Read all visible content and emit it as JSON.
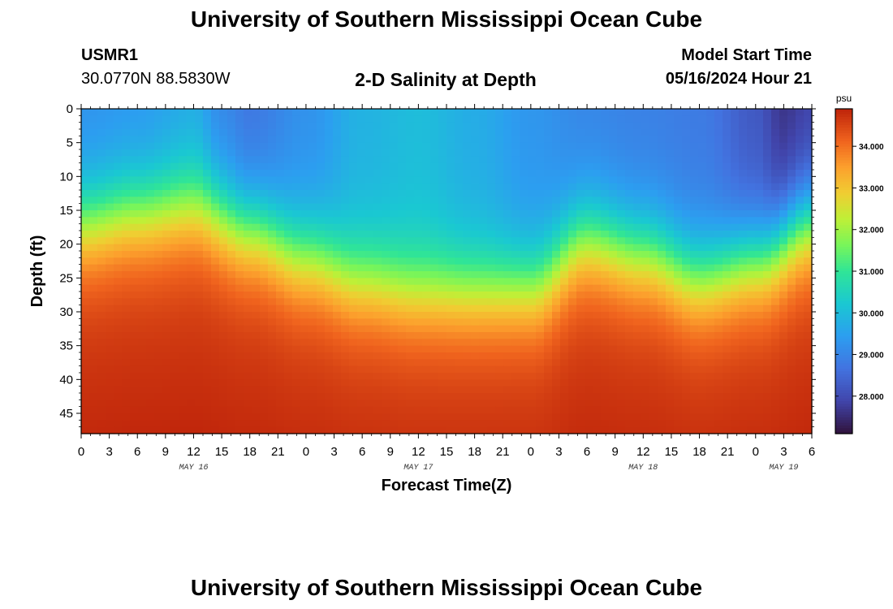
{
  "header": {
    "title": "University of Southern Mississippi Ocean Cube",
    "footer_title": "University of Southern Mississippi Ocean Cube",
    "station_id": "USMR1",
    "station_coords": "30.0770N  88.5830W",
    "plot_title": "2-D Salinity at Depth",
    "model_start_label": "Model Start Time",
    "model_start_value": "05/16/2024 Hour 21"
  },
  "chart_data": {
    "type": "heatmap",
    "title": "2-D Salinity at Depth",
    "xlabel": "Forecast Time(Z)",
    "ylabel": "Depth (ft)",
    "units": "psu",
    "x_range_hours": [
      0,
      78
    ],
    "ylim": [
      0,
      48
    ],
    "y_ticks": [
      0,
      5,
      10,
      15,
      20,
      25,
      30,
      35,
      40,
      45
    ],
    "x_tick_labels": [
      "0",
      "3",
      "6",
      "9",
      "12",
      "15",
      "18",
      "21",
      "0",
      "3",
      "6",
      "9",
      "12",
      "15",
      "18",
      "21",
      "0",
      "3",
      "6",
      "9",
      "12",
      "15",
      "18",
      "21",
      "0",
      "3",
      "6"
    ],
    "date_labels": [
      {
        "text": "MAY 16",
        "hour": 12
      },
      {
        "text": "MAY 17",
        "hour": 36
      },
      {
        "text": "MAY 18",
        "hour": 60
      },
      {
        "text": "MAY 19",
        "hour": 75
      }
    ],
    "colorbar": {
      "label": "psu",
      "min": 27.1,
      "max": 34.9,
      "ticks": [
        "28.000",
        "29.000",
        "30.000",
        "31.000",
        "32.000",
        "33.000",
        "34.000"
      ]
    },
    "halocline_depth_ft": {
      "hours": [
        0,
        6,
        12,
        18,
        24,
        30,
        36,
        42,
        48,
        54,
        60,
        66,
        72,
        78
      ],
      "values": [
        17,
        15.5,
        14.5,
        18,
        22,
        25.5,
        27,
        27,
        26.5,
        19.5,
        21.5,
        25,
        22.5,
        17
      ]
    },
    "surface_salinity_psu": {
      "hours": [
        0,
        6,
        12,
        15,
        18,
        24,
        30,
        36,
        42,
        48,
        54,
        60,
        66,
        72,
        75,
        78
      ],
      "values": [
        29.2,
        29.3,
        29.6,
        29.0,
        28.7,
        29.2,
        29.8,
        30.0,
        29.7,
        29.3,
        29.0,
        28.9,
        28.8,
        28.2,
        27.6,
        27.8
      ]
    },
    "deep_salinity_psu": 34.6
  }
}
